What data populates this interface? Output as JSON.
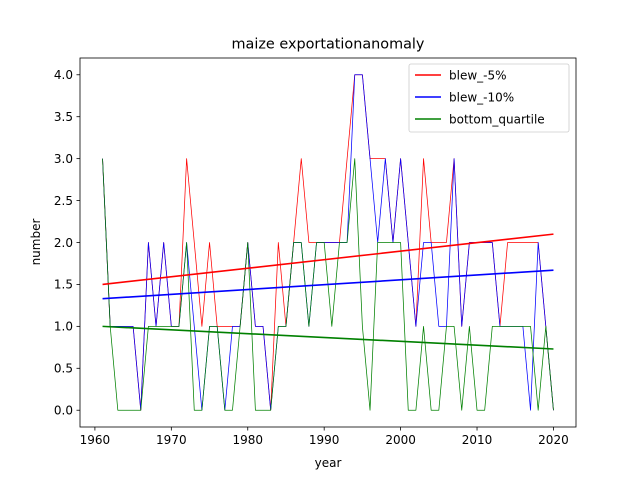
{
  "chart_data": {
    "type": "line",
    "title": "maize exportationanomaly",
    "xlabel": "year",
    "ylabel": "number",
    "xlim": [
      1958.05,
      2022.95
    ],
    "ylim": [
      -0.2,
      4.2
    ],
    "x_ticks": [
      1960,
      1970,
      1980,
      1990,
      2000,
      2010,
      2020
    ],
    "y_ticks": [
      0.0,
      0.5,
      1.0,
      1.5,
      2.0,
      2.5,
      3.0,
      3.5,
      4.0
    ],
    "grid": false,
    "legend_position": "top-right",
    "x": [
      1961,
      1962,
      1963,
      1964,
      1965,
      1966,
      1967,
      1968,
      1969,
      1970,
      1971,
      1972,
      1973,
      1974,
      1975,
      1976,
      1977,
      1978,
      1979,
      1980,
      1981,
      1982,
      1983,
      1984,
      1985,
      1986,
      1987,
      1988,
      1989,
      1990,
      1991,
      1992,
      1993,
      1994,
      1995,
      1996,
      1997,
      1998,
      1999,
      2000,
      2001,
      2002,
      2003,
      2004,
      2005,
      2006,
      2007,
      2008,
      2009,
      2010,
      2011,
      2012,
      2013,
      2014,
      2015,
      2016,
      2017,
      2018,
      2019,
      2020
    ],
    "series": [
      {
        "name": "blew_-5%",
        "color": "#ff0000",
        "values": [
          3,
          1,
          1,
          1,
          1,
          0,
          2,
          1,
          2,
          1,
          1,
          3,
          2,
          1,
          2,
          1,
          1,
          1,
          1,
          2,
          1,
          1,
          0,
          2,
          1,
          2,
          3,
          2,
          2,
          2,
          2,
          2,
          3,
          4,
          4,
          3,
          3,
          3,
          2,
          3,
          2,
          1,
          3,
          2,
          2,
          2,
          3,
          1,
          2,
          2,
          2,
          2,
          1,
          2,
          2,
          2,
          2,
          2,
          1,
          0
        ],
        "trend": [
          1.5,
          2.1
        ]
      },
      {
        "name": "blew_-10%",
        "color": "#0000ff",
        "values": [
          3,
          1,
          1,
          1,
          1,
          0,
          2,
          1,
          2,
          1,
          1,
          2,
          1,
          0,
          1,
          1,
          0,
          1,
          1,
          2,
          1,
          1,
          0,
          1,
          1,
          2,
          2,
          1,
          2,
          2,
          2,
          2,
          2,
          4,
          4,
          3,
          2,
          3,
          2,
          3,
          2,
          1,
          2,
          2,
          1,
          1,
          3,
          1,
          2,
          2,
          2,
          2,
          1,
          1,
          1,
          1,
          0,
          2,
          1,
          0
        ],
        "trend": [
          1.33,
          1.67
        ]
      },
      {
        "name": "bottom_quartile",
        "color": "#008000",
        "values": [
          3,
          1,
          0,
          0,
          0,
          0,
          1,
          1,
          1,
          1,
          1,
          2,
          0,
          0,
          1,
          1,
          0,
          0,
          1,
          2,
          0,
          0,
          0,
          1,
          1,
          2,
          2,
          1,
          2,
          2,
          1,
          2,
          2,
          3,
          1,
          0,
          2,
          2,
          2,
          2,
          0,
          0,
          1,
          0,
          0,
          1,
          1,
          0,
          1,
          0,
          0,
          1,
          1,
          1,
          1,
          1,
          1,
          0,
          1,
          0
        ],
        "trend": [
          1.0,
          0.73
        ]
      }
    ]
  }
}
